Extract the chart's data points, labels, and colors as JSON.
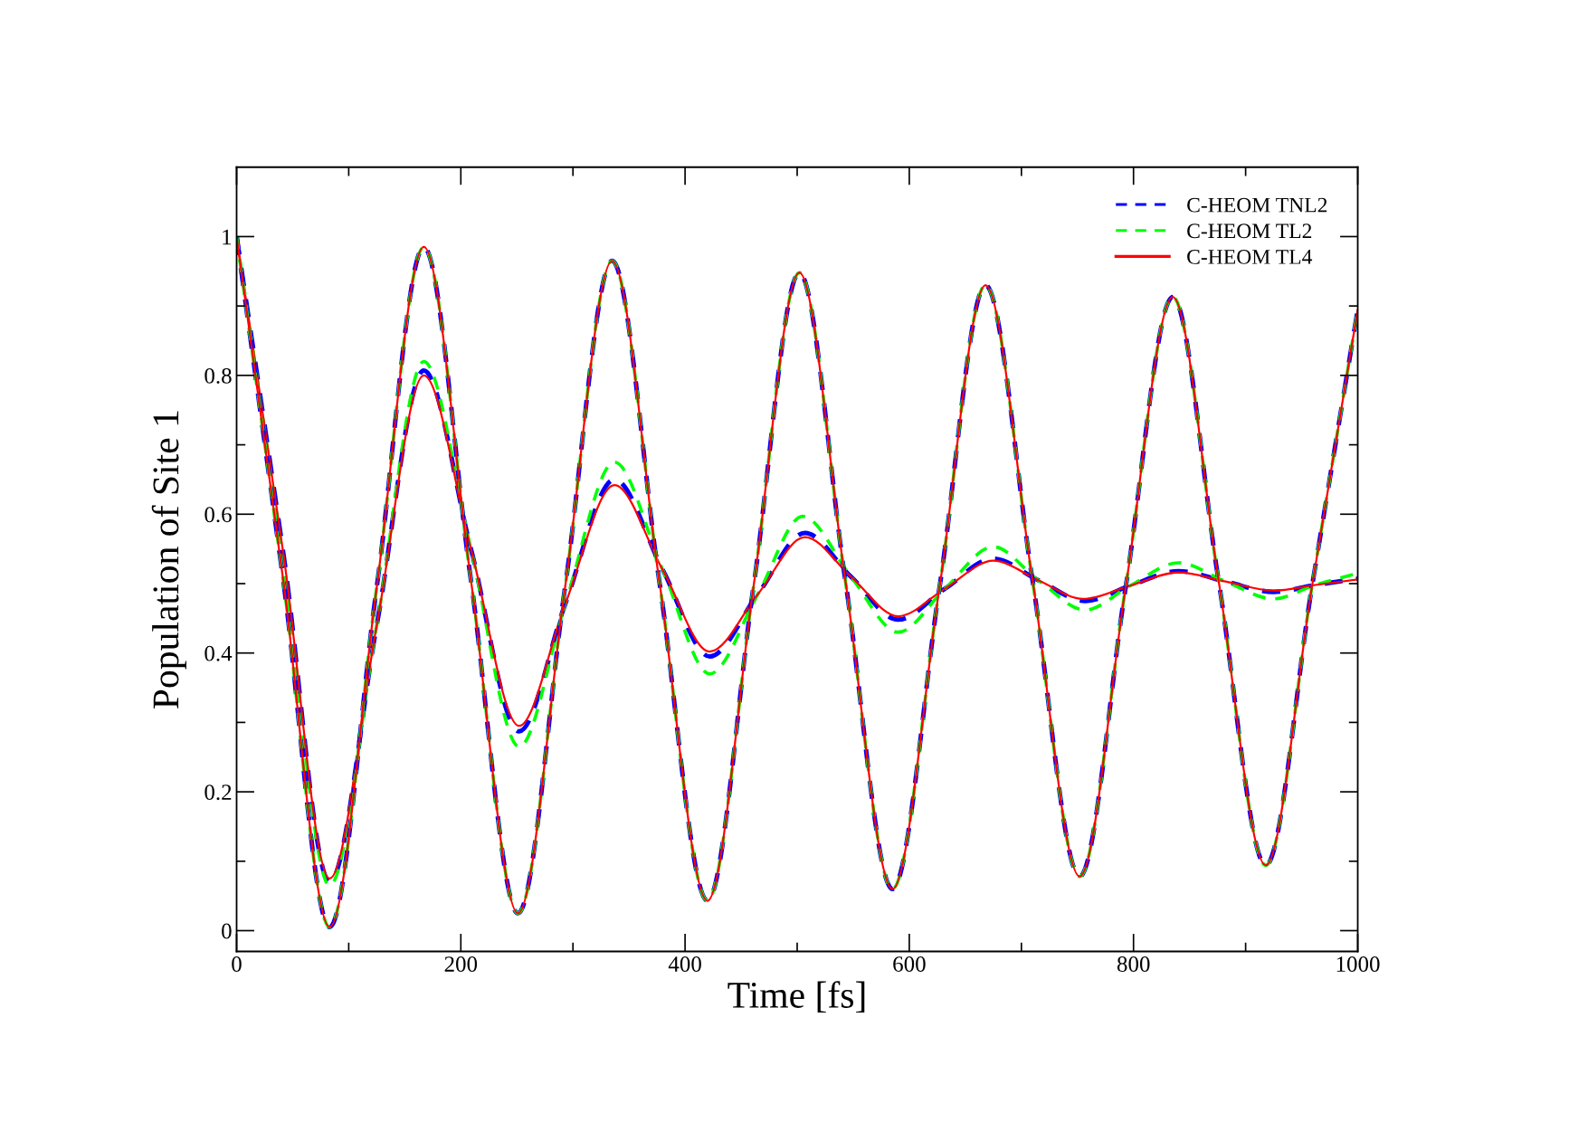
{
  "chart_data": {
    "type": "line",
    "xlabel": "Time [fs]",
    "ylabel": "Population of Site 1",
    "xlim": [
      0,
      1000
    ],
    "ylim": [
      -0.03,
      1.1
    ],
    "xticks": [
      0,
      {
        "value": 100,
        "label": null
      },
      200,
      {
        "value": 300,
        "label": null
      },
      400,
      {
        "value": 500,
        "label": null
      },
      600,
      {
        "value": 700,
        "label": null
      },
      800,
      {
        "value": 900,
        "label": null
      },
      1000
    ],
    "yticks": [
      0,
      {
        "value": 0.1,
        "label": null
      },
      0.2,
      {
        "value": 0.3,
        "label": null
      },
      0.4,
      {
        "value": 0.5,
        "label": null
      },
      0.6,
      {
        "value": 0.7,
        "label": null
      },
      0.8,
      {
        "value": 0.9,
        "label": null
      },
      1
    ],
    "grid": false,
    "legend": "top right",
    "marker": "none",
    "series": [
      {
        "name": "C-HEOM TNL2",
        "color": "#0000ff",
        "line_style": "dashed",
        "x": [
          0,
          42,
          83,
          125,
          167,
          209,
          252,
          293,
          337,
          380,
          422,
          465,
          507,
          548,
          590,
          632,
          675,
          715,
          757,
          797,
          840,
          882,
          925,
          962,
          1000
        ],
        "values": [
          1,
          0.54,
          0.07,
          0.44,
          0.807,
          0.55,
          0.287,
          0.47,
          0.65,
          0.52,
          0.395,
          0.485,
          0.573,
          0.51,
          0.448,
          0.493,
          0.536,
          0.505,
          0.475,
          0.497,
          0.518,
          0.503,
          0.488,
          0.498,
          0.507
        ]
      },
      {
        "name": "C-HEOM TL2",
        "color": "#00ff00",
        "line_style": "dashed",
        "x": [
          0,
          42,
          83,
          125,
          167,
          209,
          252,
          293,
          337,
          380,
          422,
          465,
          505,
          548,
          590,
          632,
          675,
          715,
          757,
          797,
          840,
          882,
          925,
          962,
          1000
        ],
        "values": [
          1,
          0.53,
          0.065,
          0.44,
          0.82,
          0.55,
          0.265,
          0.47,
          0.675,
          0.52,
          0.37,
          0.485,
          0.597,
          0.51,
          0.43,
          0.493,
          0.553,
          0.505,
          0.462,
          0.497,
          0.53,
          0.503,
          0.478,
          0.498,
          0.515
        ]
      },
      {
        "name": "C-HEOM TL4",
        "color": "#ff0000",
        "line_style": "solid",
        "x": [
          0,
          42,
          83,
          125,
          167,
          209,
          252,
          293,
          337,
          380,
          422,
          465,
          507,
          548,
          590,
          632,
          675,
          715,
          755,
          797,
          840,
          882,
          925,
          962,
          1000
        ],
        "values": [
          1,
          0.54,
          0.075,
          0.44,
          0.8,
          0.55,
          0.295,
          0.47,
          0.642,
          0.52,
          0.402,
          0.485,
          0.567,
          0.51,
          0.453,
          0.493,
          0.533,
          0.505,
          0.478,
          0.497,
          0.516,
          0.503,
          0.49,
          0.498,
          0.506
        ]
      },
      {
        "color": "#0000ff",
        "line_style": "dashed",
        "x": [
          0,
          42,
          83,
          125,
          167,
          209,
          251,
          293,
          335,
          377,
          420,
          461,
          502,
          543,
          585,
          627,
          668,
          710,
          752,
          793,
          835,
          876,
          918,
          959,
          1000
        ],
        "values": [
          1,
          0.5,
          0.005,
          0.495,
          0.985,
          0.505,
          0.025,
          0.495,
          0.965,
          0.504,
          0.043,
          0.495,
          0.948,
          0.504,
          0.06,
          0.495,
          0.93,
          0.504,
          0.078,
          0.495,
          0.913,
          0.503,
          0.094,
          0.494,
          0.895
        ]
      },
      {
        "color": "#00ff00",
        "line_style": "dashed",
        "x": [
          0,
          42,
          83,
          125,
          167,
          209,
          251,
          293,
          335,
          377,
          420,
          461,
          502,
          543,
          585,
          627,
          668,
          710,
          752,
          793,
          835,
          876,
          918,
          959,
          1000
        ],
        "values": [
          1,
          0.5,
          0.005,
          0.495,
          0.985,
          0.505,
          0.025,
          0.495,
          0.965,
          0.504,
          0.043,
          0.495,
          0.948,
          0.504,
          0.06,
          0.495,
          0.93,
          0.504,
          0.078,
          0.495,
          0.913,
          0.503,
          0.094,
          0.494,
          0.895
        ]
      },
      {
        "color": "#ff0000",
        "line_style": "solid",
        "x": [
          0,
          42,
          83,
          125,
          167,
          209,
          251,
          293,
          335,
          377,
          420,
          461,
          502,
          543,
          585,
          627,
          668,
          710,
          752,
          793,
          835,
          876,
          918,
          959,
          1000
        ],
        "values": [
          1,
          0.5,
          0.005,
          0.495,
          0.985,
          0.505,
          0.025,
          0.495,
          0.965,
          0.504,
          0.043,
          0.495,
          0.948,
          0.504,
          0.06,
          0.495,
          0.93,
          0.504,
          0.078,
          0.495,
          0.913,
          0.503,
          0.094,
          0.494,
          0.895
        ]
      }
    ]
  }
}
